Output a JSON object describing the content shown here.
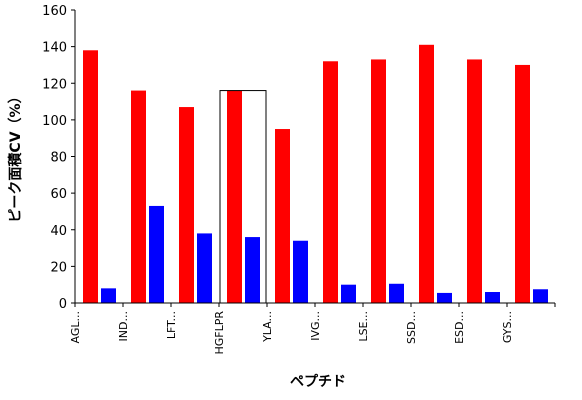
{
  "chart_data": {
    "type": "bar",
    "title": "",
    "xlabel": "ペプチド",
    "ylabel": "ピーク面積CV（%）",
    "ylim": [
      0,
      160
    ],
    "yticks": [
      0,
      20,
      40,
      60,
      80,
      100,
      120,
      140,
      160
    ],
    "categories": [
      "AGL...",
      "IND...",
      "LFT...",
      "HGFLPR",
      "YLA...",
      "IVG...",
      "LSE...",
      "SSD...",
      "ESD...",
      "GYS..."
    ],
    "series": [
      {
        "color": "#ff0000",
        "values": [
          138,
          116,
          107,
          116,
          95,
          132,
          133,
          141,
          133,
          130
        ]
      },
      {
        "color": "#0000ff",
        "values": [
          8,
          53,
          38,
          36,
          34,
          10,
          10.5,
          5.5,
          6,
          7.5
        ]
      }
    ],
    "highlighted_category": "HGFLPR",
    "grid": false,
    "legend": "none"
  }
}
